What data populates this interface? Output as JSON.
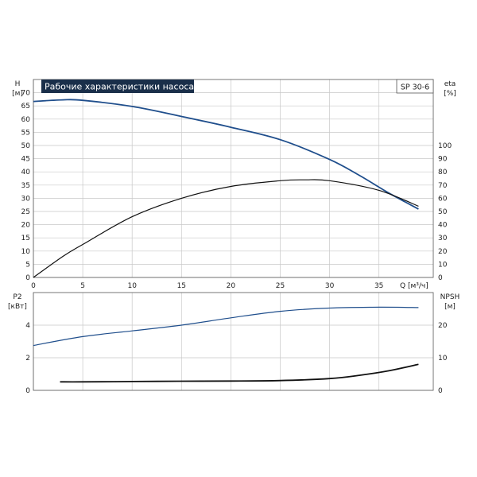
{
  "chart_data": [
    {
      "type": "line",
      "title": "Рабочие характеристики насоса",
      "model_label": "SP 30-6",
      "xlabel": "Q [м³/ч]",
      "x_ticks": [
        0,
        5,
        10,
        15,
        20,
        25,
        30,
        35
      ],
      "xlim": [
        0,
        40.5
      ],
      "left_axis": {
        "label": "H",
        "unit": "[м]",
        "ylim": [
          0,
          75
        ],
        "ticks": [
          0,
          5,
          10,
          15,
          20,
          25,
          30,
          35,
          40,
          45,
          50,
          55,
          60,
          65,
          70
        ]
      },
      "right_axis": {
        "label": "eta",
        "unit": "[%]",
        "ylim": [
          0,
          150
        ],
        "ticks": [
          0,
          10,
          20,
          30,
          40,
          50,
          60,
          70,
          80,
          90,
          100
        ]
      },
      "grid": true,
      "series": [
        {
          "name": "H",
          "axis": "left",
          "color": "#1f4e8c",
          "x": [
            0,
            3,
            5,
            10,
            15,
            20,
            25,
            30,
            33,
            36,
            39
          ],
          "y": [
            66.7,
            67.3,
            67.1,
            64.8,
            61.0,
            56.9,
            52.2,
            44.7,
            38.7,
            32.0,
            25.9
          ]
        },
        {
          "name": "eta",
          "axis": "right",
          "color": "#111111",
          "x": [
            0,
            3,
            5,
            10,
            15,
            20,
            25,
            27.5,
            30,
            35,
            39
          ],
          "y": [
            0,
            16,
            25,
            46,
            60,
            69,
            73.3,
            74,
            73.3,
            66,
            54
          ]
        }
      ]
    },
    {
      "type": "line",
      "xlim": [
        0,
        40.5
      ],
      "left_axis": {
        "label": "P2",
        "unit": "[кВт]",
        "ylim": [
          0,
          6
        ],
        "ticks": [
          0,
          2,
          4
        ]
      },
      "right_axis": {
        "label": "NPSH",
        "unit": "[м]",
        "ylim": [
          0,
          30
        ],
        "ticks": [
          0,
          10,
          20
        ]
      },
      "grid": true,
      "series": [
        {
          "name": "P2",
          "axis": "left",
          "color": "#1f4e8c",
          "x": [
            0,
            5,
            10,
            15,
            20,
            25,
            30,
            35,
            39
          ],
          "y": [
            2.75,
            3.3,
            3.65,
            4.0,
            4.45,
            4.85,
            5.05,
            5.1,
            5.08
          ]
        },
        {
          "name": "NPSH",
          "axis": "right",
          "color": "#111111",
          "x": [
            2.7,
            5,
            10,
            15,
            20,
            25,
            30,
            33,
            36,
            39
          ],
          "y": [
            2.6,
            2.6,
            2.7,
            2.8,
            2.85,
            3.0,
            3.6,
            4.6,
            6.0,
            8.0
          ]
        }
      ]
    }
  ]
}
